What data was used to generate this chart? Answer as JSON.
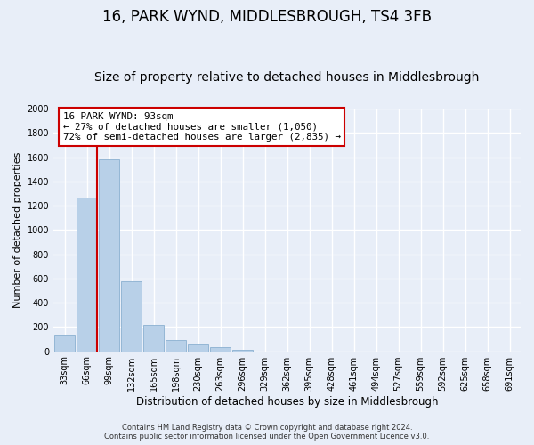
{
  "title": "16, PARK WYND, MIDDLESBROUGH, TS4 3FB",
  "subtitle": "Size of property relative to detached houses in Middlesbrough",
  "xlabel": "Distribution of detached houses by size in Middlesbrough",
  "ylabel": "Number of detached properties",
  "bar_labels": [
    "33sqm",
    "66sqm",
    "99sqm",
    "132sqm",
    "165sqm",
    "198sqm",
    "230sqm",
    "263sqm",
    "296sqm",
    "329sqm",
    "362sqm",
    "395sqm",
    "428sqm",
    "461sqm",
    "494sqm",
    "527sqm",
    "559sqm",
    "592sqm",
    "625sqm",
    "658sqm",
    "691sqm"
  ],
  "bar_values": [
    140,
    1270,
    1580,
    575,
    215,
    95,
    55,
    30,
    10,
    0,
    0,
    0,
    0,
    0,
    0,
    0,
    0,
    0,
    0,
    0,
    0
  ],
  "bar_color": "#b8d0e8",
  "bar_edge_color": "#8ab0d0",
  "ylim": [
    0,
    2000
  ],
  "yticks": [
    0,
    200,
    400,
    600,
    800,
    1000,
    1200,
    1400,
    1600,
    1800,
    2000
  ],
  "vline_color": "#cc0000",
  "annotation_title": "16 PARK WYND: 93sqm",
  "annotation_line1": "← 27% of detached houses are smaller (1,050)",
  "annotation_line2": "72% of semi-detached houses are larger (2,835) →",
  "annotation_box_color": "#ffffff",
  "annotation_box_edge": "#cc0000",
  "footer_line1": "Contains HM Land Registry data © Crown copyright and database right 2024.",
  "footer_line2": "Contains public sector information licensed under the Open Government Licence v3.0.",
  "bg_color": "#e8eef8",
  "plot_bg_color": "#e8eef8",
  "grid_color": "#ffffff",
  "title_fontsize": 12,
  "subtitle_fontsize": 10
}
